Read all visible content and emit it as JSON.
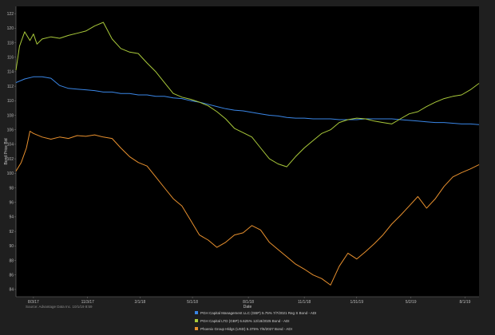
{
  "chart_data": {
    "type": "line",
    "xlabel": "Date",
    "ylabel": "Bond Price Bid",
    "ylim": [
      83,
      123
    ],
    "yticks": [
      84,
      86,
      88,
      90,
      92,
      94,
      96,
      98,
      100,
      102,
      104,
      106,
      108,
      110,
      112,
      114,
      116,
      118,
      120,
      122
    ],
    "xticks": [
      "8/3/17",
      "11/3/17",
      "2/1/18",
      "5/1/18",
      "8/1/18",
      "11/1/18",
      "1/31/19",
      "5/2/19",
      "8/1/19"
    ],
    "source": "Source: Advantage Data Inc. 10/1/19 8:59",
    "grid": false,
    "legend_position": "bottom",
    "series": [
      {
        "name": "PGH Capital Management LLC (GBP) 5.75% 7/7/2021 Reg S Bond - ADI",
        "color": "#3a86e6",
        "x": [
          0,
          0.5,
          1,
          1.5,
          2,
          2.5,
          3,
          3.5,
          4,
          4.5,
          5,
          5.5,
          6,
          6.5,
          7,
          7.5,
          8,
          8.5,
          9,
          9.5,
          10,
          10.5,
          11,
          11.5,
          12,
          12.5,
          13,
          13.5,
          14,
          14.5,
          15,
          15.5,
          16,
          16.5,
          17,
          17.5,
          18,
          18.5,
          19,
          19.5,
          20,
          20.5,
          21,
          21.5,
          22,
          22.5,
          23,
          23.5,
          24,
          24.5,
          25,
          25.5,
          26,
          26.5
        ],
        "y": [
          112.5,
          113,
          113.3,
          113.3,
          113.1,
          112.1,
          111.7,
          111.6,
          111.5,
          111.4,
          111.2,
          111.2,
          111.0,
          111.0,
          110.8,
          110.8,
          110.6,
          110.6,
          110.4,
          110.3,
          110.0,
          109.8,
          109.5,
          109.2,
          108.9,
          108.7,
          108.6,
          108.4,
          108.2,
          108.0,
          107.9,
          107.7,
          107.6,
          107.6,
          107.5,
          107.5,
          107.5,
          107.4,
          107.4,
          107.4,
          107.5,
          107.5,
          107.5,
          107.5,
          107.4,
          107.3,
          107.2,
          107.1,
          107.0,
          107.0,
          106.9,
          106.8,
          106.8,
          106.7
        ]
      },
      {
        "name": "PGH Capital LTD (GBP) 6.625% 12/18/2025 Bond - ADI",
        "color": "#a9c93a",
        "x": [
          0,
          0.2,
          0.5,
          0.8,
          1,
          1.2,
          1.5,
          2,
          2.5,
          3,
          3.5,
          4,
          4.5,
          5,
          5.5,
          6,
          6.5,
          7,
          7.5,
          8,
          8.5,
          9,
          9.5,
          10,
          10.5,
          11,
          11.5,
          12,
          12.5,
          13,
          13.5,
          14,
          14.5,
          15,
          15.5,
          16,
          16.5,
          17,
          17.5,
          18,
          18.5,
          19,
          19.5,
          20,
          20.5,
          21,
          21.5,
          22,
          22.5,
          23,
          23.5,
          24,
          24.5,
          25,
          25.5,
          26,
          26.5
        ],
        "y": [
          114.2,
          117.5,
          119.5,
          118.3,
          119.2,
          117.8,
          118.5,
          118.8,
          118.6,
          119.0,
          119.3,
          119.6,
          120.3,
          120.8,
          118.5,
          117.2,
          116.7,
          116.5,
          115.2,
          114.0,
          112.5,
          111.0,
          110.5,
          110.2,
          109.8,
          109.3,
          108.5,
          107.5,
          106.2,
          105.6,
          105.0,
          103.5,
          102.0,
          101.3,
          100.9,
          102.3,
          103.5,
          104.5,
          105.5,
          106.0,
          107.0,
          107.4,
          107.6,
          107.5,
          107.2,
          107.0,
          106.8,
          107.5,
          108.2,
          108.5,
          109.2,
          109.8,
          110.3,
          110.6,
          110.8,
          111.5,
          112.4
        ]
      },
      {
        "name": "Phoenix Group Hldgs (USD) 5.375% 7/6/2027 Bond - ADI",
        "color": "#e8902e",
        "x": [
          0,
          0.3,
          0.6,
          0.8,
          1,
          1.5,
          2,
          2.5,
          3,
          3.5,
          4,
          4.5,
          5,
          5.5,
          6,
          6.5,
          7,
          7.5,
          8,
          8.5,
          9,
          9.5,
          10,
          10.5,
          11,
          11.5,
          12,
          12.5,
          13,
          13.5,
          14,
          14.5,
          15,
          15.5,
          16,
          16.5,
          17,
          17.5,
          18,
          18.5,
          19,
          19.5,
          20,
          20.5,
          21,
          21.5,
          22,
          22.5,
          23,
          23.5,
          24,
          24.5,
          25,
          25.5,
          26,
          26.5
        ],
        "y": [
          100.3,
          101.5,
          103.5,
          105.8,
          105.5,
          105.0,
          104.7,
          105.0,
          104.8,
          105.2,
          105.1,
          105.3,
          105.0,
          104.8,
          103.5,
          102.3,
          101.5,
          101.0,
          99.5,
          98.0,
          96.5,
          95.5,
          93.5,
          91.5,
          90.8,
          89.8,
          90.5,
          91.5,
          91.8,
          92.8,
          92.2,
          90.5,
          89.5,
          88.5,
          87.5,
          86.8,
          86.0,
          85.5,
          84.6,
          87.2,
          89.0,
          88.2,
          89.2,
          90.3,
          91.5,
          93.0,
          94.2,
          95.5,
          96.8,
          95.2,
          96.5,
          98.2,
          99.5,
          100.1,
          100.6,
          101.2
        ]
      }
    ],
    "x_domain": [
      0,
      26.5
    ],
    "xtick_positions": [
      1,
      4.1,
      7.1,
      10.1,
      13.3,
      16.5,
      19.5,
      22.6,
      25.7
    ]
  }
}
